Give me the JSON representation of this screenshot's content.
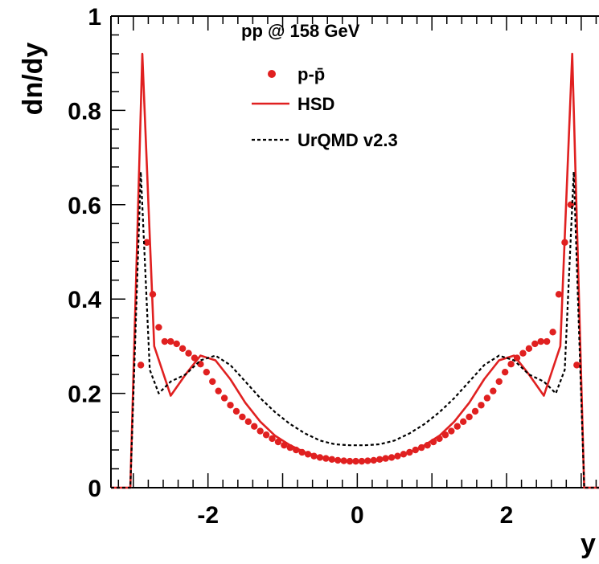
{
  "chart_data": {
    "type": "line",
    "title": "",
    "xlabel": "y",
    "ylabel": "dn/dy",
    "xlim": [
      -3.3,
      3.4
    ],
    "ylim": [
      0,
      1
    ],
    "grid": false,
    "legend_placement": "top-center",
    "legend_title": "pp @ 158 GeV",
    "x_ticks": [
      {
        "v": -2,
        "label": "-2"
      },
      {
        "v": 0,
        "label": "0"
      },
      {
        "v": 2,
        "label": "2"
      }
    ],
    "y_ticks": [
      {
        "v": 0,
        "label": "0"
      },
      {
        "v": 0.2,
        "label": "0.2"
      },
      {
        "v": 0.4,
        "label": "0.4"
      },
      {
        "v": 0.6,
        "label": "0.6"
      },
      {
        "v": 0.8,
        "label": "0.8"
      },
      {
        "v": 1,
        "label": "1"
      }
    ],
    "series": [
      {
        "name": "p-p̄",
        "style": "points",
        "color": "#e02020",
        "x": [
          -2.9,
          -2.82,
          -2.74,
          -2.66,
          -2.58,
          -2.5,
          -2.42,
          -2.34,
          -2.26,
          -2.18,
          -2.1,
          -2.02,
          -1.94,
          -1.86,
          -1.78,
          -1.7,
          -1.62,
          -1.54,
          -1.46,
          -1.38,
          -1.3,
          -1.22,
          -1.14,
          -1.06,
          -0.98,
          -0.9,
          -0.82,
          -0.74,
          -0.66,
          -0.58,
          -0.5,
          -0.42,
          -0.34,
          -0.26,
          -0.18,
          -0.1,
          -0.02,
          0.06,
          0.14,
          0.22,
          0.3,
          0.38,
          0.46,
          0.54,
          0.62,
          0.7,
          0.78,
          0.86,
          0.94,
          1.02,
          1.1,
          1.18,
          1.26,
          1.34,
          1.42,
          1.5,
          1.58,
          1.66,
          1.74,
          1.82,
          1.9,
          1.98,
          2.06,
          2.14,
          2.22,
          2.3,
          2.38,
          2.46,
          2.54,
          2.62,
          2.7,
          2.78,
          2.86,
          2.94
        ],
        "y": [
          0.26,
          0.52,
          0.41,
          0.34,
          0.31,
          0.31,
          0.305,
          0.295,
          0.285,
          0.275,
          0.262,
          0.245,
          0.225,
          0.205,
          0.19,
          0.175,
          0.162,
          0.15,
          0.14,
          0.13,
          0.12,
          0.112,
          0.104,
          0.097,
          0.09,
          0.085,
          0.08,
          0.075,
          0.071,
          0.067,
          0.064,
          0.062,
          0.06,
          0.058,
          0.057,
          0.056,
          0.056,
          0.056,
          0.057,
          0.058,
          0.06,
          0.062,
          0.064,
          0.067,
          0.071,
          0.075,
          0.08,
          0.085,
          0.09,
          0.097,
          0.104,
          0.112,
          0.12,
          0.13,
          0.14,
          0.15,
          0.162,
          0.175,
          0.19,
          0.205,
          0.225,
          0.245,
          0.262,
          0.275,
          0.285,
          0.295,
          0.305,
          0.31,
          0.31,
          0.33,
          0.41,
          0.52,
          0.6,
          0.26
        ]
      },
      {
        "name": "HSD",
        "style": "solid",
        "color": "#e02020",
        "x": [
          -3.3,
          -3.04,
          -2.88,
          -2.72,
          -2.5,
          -2.3,
          -2.1,
          -1.9,
          -1.7,
          -1.5,
          -1.3,
          -1.1,
          -0.9,
          -0.7,
          -0.5,
          -0.3,
          -0.1,
          0,
          0.1,
          0.3,
          0.5,
          0.7,
          0.9,
          1.1,
          1.3,
          1.5,
          1.7,
          1.9,
          2.1,
          2.3,
          2.5,
          2.72,
          2.88,
          3.04,
          3.4
        ],
        "y": [
          0,
          0,
          0.92,
          0.3,
          0.195,
          0.24,
          0.28,
          0.27,
          0.23,
          0.18,
          0.14,
          0.11,
          0.09,
          0.075,
          0.065,
          0.058,
          0.055,
          0.055,
          0.055,
          0.058,
          0.065,
          0.075,
          0.09,
          0.11,
          0.14,
          0.18,
          0.23,
          0.27,
          0.28,
          0.24,
          0.195,
          0.3,
          0.92,
          0,
          0
        ]
      },
      {
        "name": "UrQMD v2.3",
        "style": "dashed",
        "color": "#000000",
        "x": [
          -3.3,
          -3.04,
          -2.9,
          -2.78,
          -2.66,
          -2.5,
          -2.3,
          -2.1,
          -1.9,
          -1.7,
          -1.5,
          -1.3,
          -1.1,
          -0.9,
          -0.7,
          -0.5,
          -0.3,
          -0.1,
          0,
          0.1,
          0.3,
          0.5,
          0.7,
          0.9,
          1.1,
          1.3,
          1.5,
          1.7,
          1.9,
          2.1,
          2.3,
          2.5,
          2.66,
          2.78,
          2.9,
          3.04,
          3.4
        ],
        "y": [
          0,
          0,
          0.67,
          0.25,
          0.2,
          0.225,
          0.24,
          0.27,
          0.28,
          0.26,
          0.225,
          0.19,
          0.16,
          0.135,
          0.115,
          0.1,
          0.092,
          0.09,
          0.09,
          0.09,
          0.092,
          0.1,
          0.115,
          0.135,
          0.16,
          0.19,
          0.225,
          0.26,
          0.28,
          0.27,
          0.24,
          0.225,
          0.2,
          0.25,
          0.67,
          0,
          0
        ]
      }
    ]
  }
}
